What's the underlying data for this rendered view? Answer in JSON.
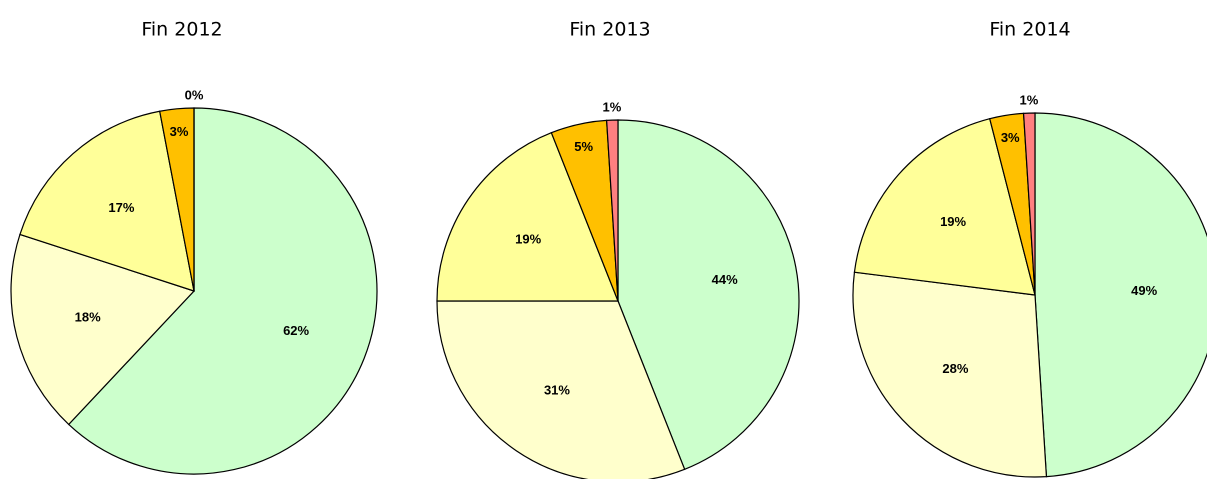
{
  "chart_data": [
    {
      "type": "pie",
      "title": "Fin 2012",
      "values": [
        62,
        18,
        17,
        3,
        0
      ],
      "value_labels": [
        "62%",
        "18%",
        "17%",
        "3%",
        "0%"
      ],
      "colors": [
        "#ccffcc",
        "#ffffcc",
        "#ffff99",
        "#ffc000",
        "#ff8080"
      ]
    },
    {
      "type": "pie",
      "title": "Fin 2013",
      "values": [
        44,
        31,
        19,
        5,
        1
      ],
      "value_labels": [
        "44%",
        "31%",
        "19%",
        "5%",
        "1%"
      ],
      "colors": [
        "#ccffcc",
        "#ffffcc",
        "#ffff99",
        "#ffc000",
        "#ff8080"
      ]
    },
    {
      "type": "pie",
      "title": "Fin 2014",
      "values": [
        49,
        28,
        19,
        3,
        1
      ],
      "value_labels": [
        "49%",
        "28%",
        "19%",
        "3%",
        "1%"
      ],
      "colors": [
        "#ccffcc",
        "#ffffcc",
        "#ffff99",
        "#ffc000",
        "#ff8080"
      ]
    }
  ]
}
